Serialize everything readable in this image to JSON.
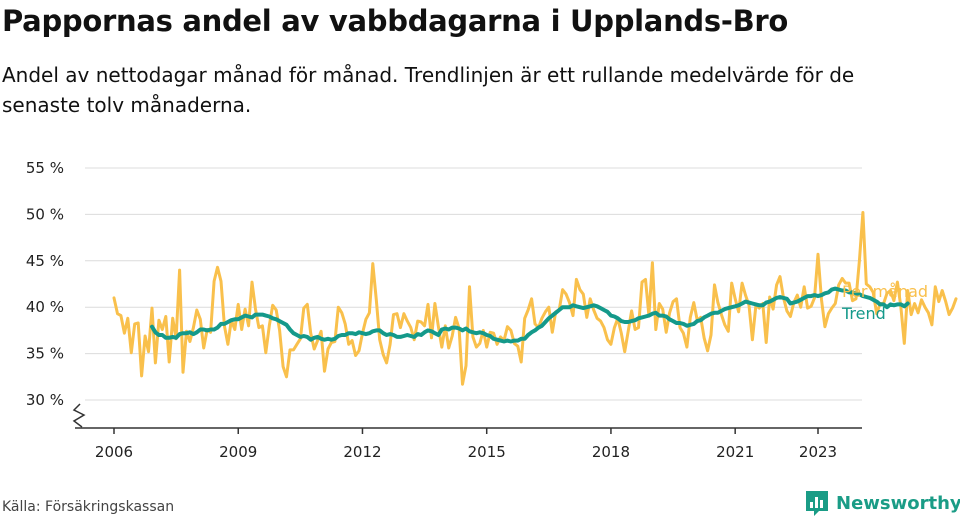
{
  "header": {
    "title": "Pappornas andel av vabbdagarna i Upplands-Bro",
    "subtitle": "Andel av nettodagar månad för månad. Trendlinjen är ett rullande medelvärde för de senaste tolv månaderna."
  },
  "footer": {
    "source": "Källa: Försäkringskassan",
    "brand": "Newsworthy",
    "brand_icon": "bar-chart-logo-icon"
  },
  "colors": {
    "monthly": "#f9c04c",
    "trend": "#14998a",
    "grid": "#dcdcdc",
    "axis": "#333333",
    "brand": "#1a9c86"
  },
  "chart_data": {
    "type": "line",
    "title": "Pappornas andel av vabbdagarna i Upplands-Bro",
    "xlabel": "",
    "ylabel": "",
    "x_ticks": [
      2006,
      2009,
      2012,
      2015,
      2018,
      2021,
      2023
    ],
    "y_ticks": [
      "30 %",
      "35 %",
      "40 %",
      "45 %",
      "50 %",
      "55 %"
    ],
    "y_tick_values": [
      30,
      35,
      40,
      45,
      50,
      55
    ],
    "ylim": [
      30,
      55
    ],
    "y_axis_break": true,
    "grid": true,
    "legend": "direct-labels-right",
    "series": [
      {
        "name": "Per månad",
        "color": "#f9c04c",
        "start": "2006-01",
        "frequency": "monthly",
        "values": [
          41.0,
          39.3,
          39.1,
          37.2,
          38.8,
          35.1,
          38.2,
          38.3,
          32.6,
          36.9,
          35.2,
          39.9,
          34.0,
          38.6,
          37.6,
          39.0,
          34.1,
          38.8,
          36.6,
          44.0,
          33.0,
          37.4,
          36.3,
          37.8,
          39.7,
          38.7,
          35.6,
          37.6,
          37.3,
          42.8,
          44.3,
          42.8,
          38.0,
          36.0,
          38.6,
          37.6,
          40.3,
          37.6,
          39.8,
          38.0,
          42.7,
          39.8,
          37.8,
          38.0,
          35.1,
          38.0,
          40.2,
          39.7,
          37.5,
          33.6,
          32.5,
          35.4,
          35.4,
          36.0,
          36.6,
          39.9,
          40.3,
          37.2,
          35.5,
          36.4,
          37.4,
          33.1,
          35.5,
          36.2,
          36.3,
          40.0,
          39.4,
          38.2,
          36.0,
          36.4,
          34.8,
          35.3,
          37.2,
          38.7,
          39.4,
          44.7,
          40.8,
          36.5,
          34.9,
          34.0,
          36.0,
          39.2,
          39.3,
          37.8,
          39.3,
          38.5,
          37.8,
          36.5,
          38.5,
          38.4,
          38.0,
          40.3,
          36.7,
          40.4,
          37.9,
          35.7,
          38.0,
          35.6,
          36.9,
          38.9,
          37.7,
          31.7,
          33.7,
          42.2,
          36.8,
          35.7,
          36.1,
          37.5,
          35.7,
          37.3,
          37.2,
          36.0,
          36.8,
          36.4,
          37.9,
          37.5,
          36.1,
          35.8,
          34.1,
          38.8,
          39.7,
          40.9,
          38.2,
          37.8,
          38.8,
          39.5,
          40.0,
          37.3,
          39.5,
          39.7,
          41.9,
          41.4,
          40.5,
          39.1,
          43.0,
          41.9,
          41.4,
          38.9,
          40.9,
          39.7,
          38.8,
          38.5,
          37.8,
          36.5,
          36.0,
          37.8,
          38.8,
          37.2,
          35.2,
          37.4,
          39.6,
          37.6,
          37.8,
          42.7,
          43.0,
          39.1,
          44.8,
          37.6,
          40.4,
          39.8,
          37.3,
          39.4,
          40.6,
          40.9,
          37.8,
          37.2,
          35.7,
          38.9,
          40.5,
          38.6,
          38.9,
          36.7,
          35.3,
          37.0,
          42.4,
          40.5,
          39.2,
          38.1,
          37.4,
          42.6,
          40.9,
          39.5,
          42.6,
          41.3,
          40.2,
          36.5,
          40.2,
          39.9,
          40.4,
          36.2,
          41.1,
          39.8,
          42.4,
          43.3,
          41.0,
          39.6,
          39.0,
          40.5,
          41.3,
          40.0,
          42.2,
          39.9,
          40.1,
          41.0,
          45.7,
          40.8,
          37.9,
          39.3,
          39.9,
          40.4,
          42.4,
          43.1,
          42.6,
          42.6,
          40.7,
          40.9,
          45.0,
          50.2,
          42.5,
          42.2,
          41.6,
          39.3,
          40.4,
          40.4,
          41.5,
          41.8,
          40.7,
          42.7,
          40.1,
          36.1,
          41.8,
          39.2,
          40.4,
          39.4,
          40.8,
          40.0,
          39.4,
          38.1,
          42.2,
          40.6,
          41.8,
          40.6,
          39.2,
          39.9,
          40.9
        ]
      },
      {
        "name": "Trend",
        "color": "#14998a",
        "start": "2006-12",
        "frequency": "monthly",
        "values": [
          37.9,
          37.3,
          37.0,
          37.0,
          36.7,
          36.7,
          36.8,
          36.7,
          37.1,
          37.2,
          37.2,
          37.3,
          37.1,
          37.3,
          37.6,
          37.6,
          37.5,
          37.6,
          37.6,
          37.8,
          38.2,
          38.2,
          38.4,
          38.6,
          38.7,
          38.7,
          38.9,
          39.1,
          39.0,
          38.9,
          39.2,
          39.2,
          39.2,
          39.1,
          39.0,
          38.8,
          38.7,
          38.5,
          38.3,
          38.1,
          37.6,
          37.2,
          37.0,
          36.8,
          36.9,
          36.8,
          36.5,
          36.7,
          36.8,
          36.6,
          36.5,
          36.6,
          36.5,
          36.6,
          36.9,
          37.0,
          37.0,
          37.2,
          37.2,
          37.1,
          37.3,
          37.2,
          37.1,
          37.2,
          37.4,
          37.5,
          37.5,
          37.2,
          37.0,
          37.1,
          37.0,
          36.8,
          36.8,
          36.9,
          37.0,
          36.9,
          36.8,
          37.1,
          37.0,
          37.3,
          37.5,
          37.4,
          37.2,
          37.0,
          37.6,
          37.7,
          37.6,
          37.8,
          37.8,
          37.7,
          37.5,
          37.7,
          37.4,
          37.3,
          37.2,
          37.3,
          37.2,
          37.0,
          36.9,
          36.6,
          36.5,
          36.4,
          36.3,
          36.4,
          36.3,
          36.4,
          36.4,
          36.6,
          36.6,
          37.0,
          37.3,
          37.5,
          37.8,
          38.0,
          38.4,
          38.8,
          39.1,
          39.4,
          39.7,
          40.0,
          40.0,
          40.0,
          40.2,
          40.1,
          40.0,
          39.9,
          40.0,
          40.1,
          40.2,
          40.1,
          39.9,
          39.7,
          39.5,
          39.1,
          39.0,
          38.8,
          38.5,
          38.4,
          38.4,
          38.5,
          38.6,
          38.8,
          38.9,
          39.0,
          39.1,
          39.3,
          39.4,
          39.1,
          39.1,
          39.0,
          38.7,
          38.5,
          38.3,
          38.3,
          38.2,
          38.0,
          38.1,
          38.2,
          38.5,
          38.6,
          38.9,
          39.1,
          39.3,
          39.4,
          39.4,
          39.6,
          39.8,
          39.9,
          40.0,
          40.1,
          40.2,
          40.4,
          40.6,
          40.5,
          40.4,
          40.3,
          40.2,
          40.2,
          40.5,
          40.6,
          40.8,
          41.0,
          41.1,
          41.0,
          40.9,
          40.4,
          40.5,
          40.6,
          40.8,
          41.0,
          41.2,
          41.2,
          41.3,
          41.2,
          41.3,
          41.5,
          41.6,
          41.9,
          42.0,
          41.9,
          41.8,
          41.8,
          41.6,
          41.6,
          41.5,
          41.4,
          41.2,
          41.1,
          41.0,
          40.8,
          40.6,
          40.3,
          40.3,
          40.0,
          40.3,
          40.2,
          40.3,
          40.3,
          40.1,
          40.4
        ]
      }
    ]
  }
}
